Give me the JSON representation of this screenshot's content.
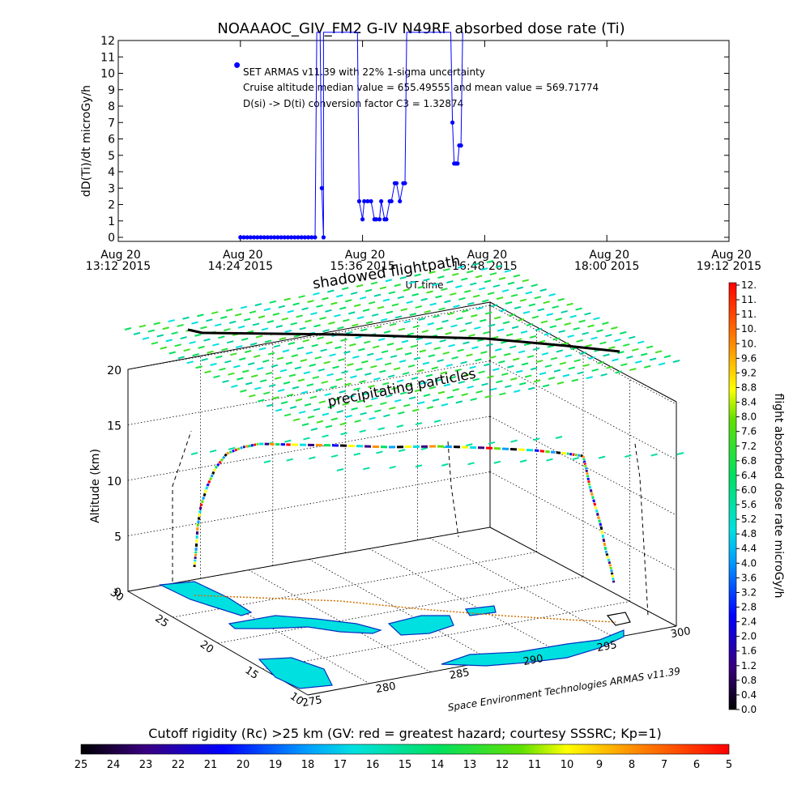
{
  "chart_data": [
    {
      "type": "line",
      "title": "NOAAAOC_GIV_FM2 G-IV    N49RF  absorbed dose rate (Ti)",
      "ylabel": "dD(Ti)/dt microGy/h",
      "xlabel": "UT time",
      "ylim": [
        0,
        12
      ],
      "yticks": [
        "0",
        "1",
        "2",
        "3",
        "4",
        "5",
        "6",
        "7",
        "8",
        "9",
        "10",
        "11",
        "12"
      ],
      "xticks": [
        {
          "date": "Aug 20",
          "time": "13:12 2015"
        },
        {
          "date": "Aug 20",
          "time": "14:24 2015"
        },
        {
          "date": "Aug 20",
          "time": "15:36 2015"
        },
        {
          "date": "Aug 20",
          "time": "16:48 2015"
        },
        {
          "date": "Aug 20",
          "time": "18:00 2015"
        },
        {
          "date": "Aug 20",
          "time": "19:12 2015"
        }
      ],
      "annotations": [
        "SET ARMAS v11.39 with 22% 1-sigma uncertainty",
        "Cruise altitude median value = 655.49555 and mean value = 569.71774",
        "D(si) -> D(ti) conversion factor C3 = 1.32874"
      ],
      "legend_point": {
        "x": "14:22",
        "y": 10.5
      },
      "series": [
        {
          "color": "#0000ff",
          "points": [
            [
              "14:24",
              0
            ],
            [
              "14:26",
              0
            ],
            [
              "14:28",
              0
            ],
            [
              "14:30",
              0
            ],
            [
              "14:32",
              0
            ],
            [
              "14:34",
              0
            ],
            [
              "14:36",
              0
            ],
            [
              "14:38",
              0
            ],
            [
              "14:40",
              0
            ],
            [
              "14:42",
              0
            ],
            [
              "14:44",
              0
            ],
            [
              "14:46",
              0
            ],
            [
              "14:48",
              0
            ],
            [
              "14:50",
              0
            ],
            [
              "14:52",
              0
            ],
            [
              "14:54",
              0
            ],
            [
              "14:56",
              0
            ],
            [
              "14:58",
              0
            ],
            [
              "15:00",
              0
            ],
            [
              "15:02",
              0
            ],
            [
              "15:04",
              0
            ],
            [
              "15:06",
              0
            ],
            [
              "15:08",
              0
            ],
            [
              "15:09",
              12.5
            ],
            [
              "15:11",
              12.5
            ],
            [
              "15:12",
              3
            ],
            [
              "15:13",
              0
            ],
            [
              "15:13",
              12.5
            ],
            [
              "15:33",
              12.5
            ],
            [
              "15:34",
              2.2
            ],
            [
              "15:36",
              1.1
            ],
            [
              "15:37",
              2.2
            ],
            [
              "15:39",
              2.2
            ],
            [
              "15:41",
              2.2
            ],
            [
              "15:43",
              1.1
            ],
            [
              "15:44",
              1.1
            ],
            [
              "15:46",
              1.1
            ],
            [
              "15:47",
              2.2
            ],
            [
              "15:49",
              1.1
            ],
            [
              "15:50",
              1.1
            ],
            [
              "15:52",
              2.2
            ],
            [
              "15:53",
              2.2
            ],
            [
              "15:55",
              3.3
            ],
            [
              "15:56",
              3.3
            ],
            [
              "15:58",
              2.2
            ],
            [
              "16:00",
              3.3
            ],
            [
              "16:01",
              3.3
            ],
            [
              "16:02",
              12.5
            ],
            [
              "16:28",
              12.5
            ],
            [
              "16:29",
              7
            ],
            [
              "16:30",
              4.5
            ],
            [
              "16:31",
              4.5
            ],
            [
              "16:32",
              4.5
            ],
            [
              "16:33",
              5.6
            ],
            [
              "16:34",
              5.6
            ],
            [
              "16:35",
              12.5
            ]
          ]
        }
      ]
    },
    {
      "type": "scatter",
      "title": "shadowed flightpath",
      "zlabel": "Altitude (km)",
      "zticks": [
        "0",
        "5",
        "10",
        "15",
        "20"
      ],
      "lat_ticks": [
        "30",
        "25",
        "20",
        "15",
        "10"
      ],
      "lon_ticks": [
        "275",
        "280",
        "285",
        "290",
        "295",
        "300"
      ],
      "annotation": "precipitating particles",
      "credit": "Space Environment Technologies ARMAS v11.39",
      "flight_track": [
        {
          "lon": 281,
          "lat": 28,
          "alt": 0
        },
        {
          "lon": 281,
          "lat": 28,
          "alt": 12.8
        },
        {
          "lon": 298,
          "lat": 19,
          "alt": 12.8
        },
        {
          "lon": 298,
          "lat": 19,
          "alt": 0
        }
      ]
    },
    {
      "type": "heatmap",
      "title": "flight absorbed dose rate microGy/h",
      "orientation": "vertical",
      "range": [
        0,
        12
      ],
      "tick_labels": [
        "0.0",
        "0.4",
        "0.8",
        "1.2",
        "1.6",
        "2.0",
        "2.4",
        "2.8",
        "3.2",
        "3.6",
        "4.0",
        "4.4",
        "4.8",
        "5.2",
        "5.6",
        "6.0",
        "6.4",
        "6.8",
        "7.2",
        "7.6",
        "8.0",
        "8.4",
        "8.8",
        "9.2",
        "9.6",
        "10.",
        "10.",
        "11.",
        "11.",
        "12."
      ]
    },
    {
      "type": "heatmap",
      "title": "Cutoff rigidity (Rc) >25 km (GV: red = greatest hazard; courtesy SSSRC; Kp=1)",
      "orientation": "horizontal",
      "range": [
        25,
        5
      ],
      "tick_labels": [
        "25",
        "24",
        "23",
        "22",
        "21",
        "20",
        "19",
        "18",
        "17",
        "16",
        "15",
        "14",
        "13",
        "12",
        "11",
        "10",
        "9",
        "8",
        "7",
        "6",
        "5"
      ]
    }
  ]
}
